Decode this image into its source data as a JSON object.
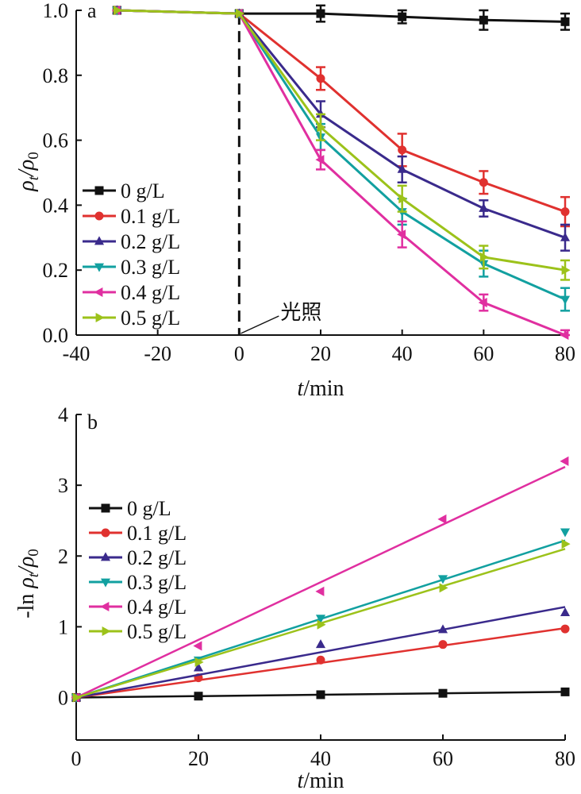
{
  "chart_data": [
    {
      "type": "line",
      "panel_label": "a",
      "xlabel_italic": "t",
      "xlabel_rest": "/min",
      "ylabel_rho": "ρ",
      "ylabel_t": "t",
      "ylabel_slash": "/ρ",
      "ylabel_zero": "0",
      "xlim": [
        -40,
        80
      ],
      "ylim": [
        0,
        1.0
      ],
      "xticks": [
        -40,
        -20,
        0,
        20,
        40,
        60,
        80
      ],
      "xtick_labels": [
        "-40",
        "-20",
        "0",
        "20",
        "40",
        "60",
        "80"
      ],
      "yticks": [
        0,
        0.2,
        0.4,
        0.6,
        0.8,
        1.0
      ],
      "ytick_labels": [
        "0.0",
        "0.2",
        "0.4",
        "0.6",
        "0.8",
        "1.0"
      ],
      "annotation": {
        "text": "光照",
        "x": 0
      },
      "legend_position": "left",
      "grid": false,
      "x": [
        -30,
        0,
        20,
        40,
        60,
        80
      ],
      "series": [
        {
          "name": "0 g/L",
          "color": "#111111",
          "marker": "square",
          "values": [
            1.0,
            0.99,
            0.99,
            0.98,
            0.97,
            0.965
          ],
          "errors": [
            0,
            0,
            0.025,
            0.02,
            0.03,
            0.025
          ]
        },
        {
          "name": "0.1 g/L",
          "color": "#e0312f",
          "marker": "circle",
          "values": [
            1.0,
            0.99,
            0.79,
            0.57,
            0.47,
            0.38
          ],
          "errors": [
            0,
            0,
            0.035,
            0.05,
            0.035,
            0.045
          ]
        },
        {
          "name": "0.2 g/L",
          "color": "#3a2a8c",
          "marker": "triangle-up",
          "values": [
            1.0,
            0.99,
            0.68,
            0.51,
            0.39,
            0.3
          ],
          "errors": [
            0,
            0,
            0.04,
            0.04,
            0.025,
            0.04
          ]
        },
        {
          "name": "0.3 g/L",
          "color": "#12a0a0",
          "marker": "triangle-down",
          "values": [
            1.0,
            0.99,
            0.61,
            0.38,
            0.22,
            0.11
          ],
          "errors": [
            0,
            0,
            0.04,
            0.04,
            0.04,
            0.035
          ]
        },
        {
          "name": "0.4 g/L",
          "color": "#e02fa0",
          "marker": "triangle-left",
          "values": [
            1.0,
            0.99,
            0.54,
            0.31,
            0.1,
            0.0
          ],
          "errors": [
            0,
            0,
            0.03,
            0.04,
            0.025,
            0.015
          ]
        },
        {
          "name": "0.5 g/L",
          "color": "#9cc21a",
          "marker": "triangle-right",
          "values": [
            1.0,
            0.99,
            0.64,
            0.42,
            0.24,
            0.2
          ],
          "errors": [
            0,
            0,
            0.04,
            0.04,
            0.035,
            0.03
          ]
        }
      ]
    },
    {
      "type": "line",
      "panel_label": "b",
      "xlabel_italic": "t",
      "xlabel_rest": "/min",
      "ylabel_prefix": "-ln ",
      "ylabel_rho": "ρ",
      "ylabel_t": "t",
      "ylabel_slash": "/ρ",
      "ylabel_zero": "0",
      "xlim": [
        0,
        80
      ],
      "ylim": [
        -0.6,
        4.0
      ],
      "xticks": [
        0,
        20,
        40,
        60,
        80
      ],
      "xtick_labels": [
        "0",
        "20",
        "40",
        "60",
        "80"
      ],
      "yticks": [
        0,
        1,
        2,
        3,
        4
      ],
      "ytick_labels": [
        "0",
        "1",
        "2",
        "3",
        "4"
      ],
      "legend_position": "left",
      "grid": false,
      "x": [
        0,
        20,
        40,
        60,
        80
      ],
      "series": [
        {
          "name": "0 g/L",
          "color": "#111111",
          "marker": "square",
          "values": [
            0.0,
            0.02,
            0.04,
            0.06,
            0.08
          ],
          "fit_end": 0.08
        },
        {
          "name": "0.1 g/L",
          "color": "#e0312f",
          "marker": "circle",
          "values": [
            0.0,
            0.28,
            0.53,
            0.75,
            0.97
          ],
          "fit_end": 0.98
        },
        {
          "name": "0.2 g/L",
          "color": "#3a2a8c",
          "marker": "triangle-up",
          "values": [
            0.0,
            0.42,
            0.75,
            0.96,
            1.2
          ],
          "fit_end": 1.28
        },
        {
          "name": "0.3 g/L",
          "color": "#12a0a0",
          "marker": "triangle-down",
          "values": [
            0.0,
            0.53,
            1.12,
            1.68,
            2.34
          ],
          "fit_end": 2.22
        },
        {
          "name": "0.4 g/L",
          "color": "#e02fa0",
          "marker": "triangle-left",
          "values": [
            0.0,
            0.73,
            1.5,
            2.52,
            3.34
          ],
          "fit_end": 3.26
        },
        {
          "name": "0.5 g/L",
          "color": "#9cc21a",
          "marker": "triangle-right",
          "values": [
            0.0,
            0.5,
            1.03,
            1.55,
            2.17
          ],
          "fit_end": 2.1
        }
      ]
    }
  ]
}
